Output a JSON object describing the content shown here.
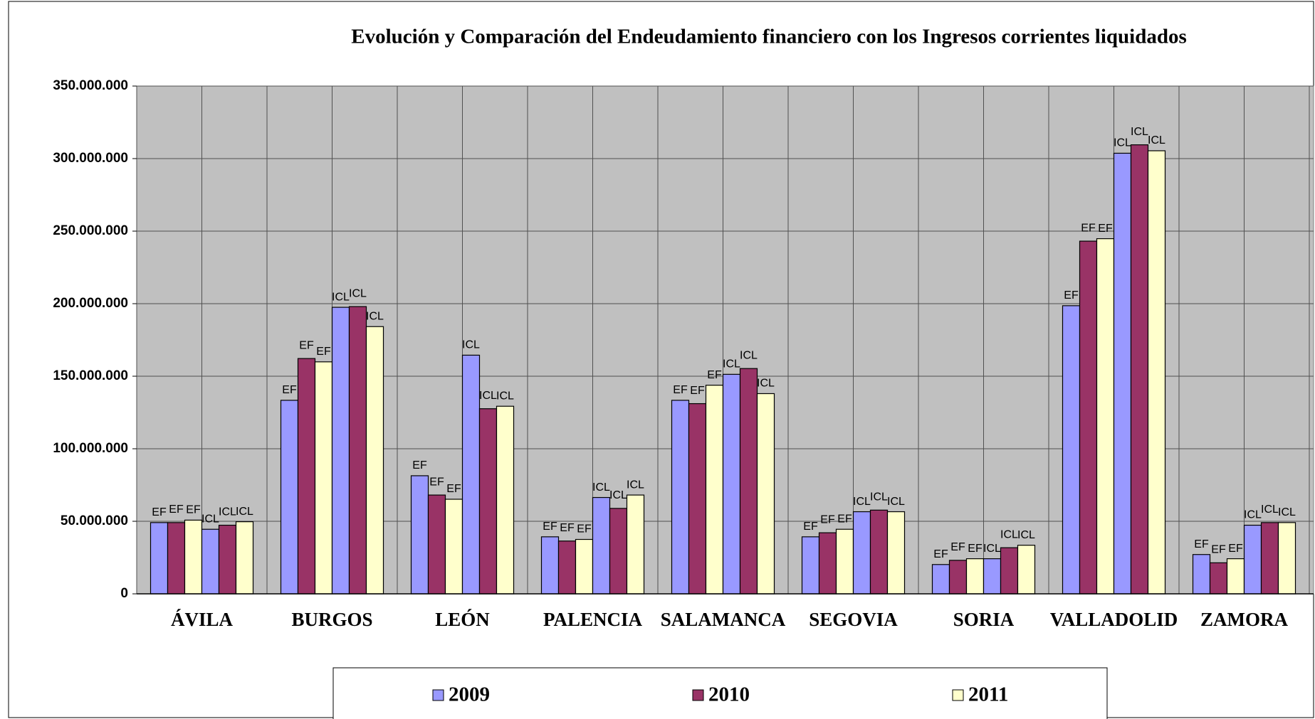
{
  "chart_data": {
    "type": "bar",
    "title": "Evolución y Comparación del Endeudamiento financiero con los Ingresos corrientes liquidados",
    "categories": [
      "ÁVILA",
      "BURGOS",
      "LEÓN",
      "PALENCIA",
      "SALAMANCA",
      "SEGOVIA",
      "SORIA",
      "VALLADOLID",
      "ZAMORA"
    ],
    "measures": [
      "EF",
      "ICL"
    ],
    "series": [
      {
        "name": "2009",
        "color": "#9999ff",
        "values": [
          [
            49100000,
            44500000
          ],
          [
            133400000,
            197500000
          ],
          [
            81400000,
            164500000
          ],
          [
            39300000,
            66400000
          ],
          [
            133400000,
            151300000
          ],
          [
            39300000,
            56600000
          ],
          [
            20200000,
            24200000
          ],
          [
            198600000,
            303700000
          ],
          [
            27100000,
            47300000
          ]
        ]
      },
      {
        "name": "2010",
        "color": "#993366",
        "values": [
          [
            49100000,
            47300000
          ],
          [
            162200000,
            198000000
          ],
          [
            68100000,
            127600000
          ],
          [
            36400000,
            58900000
          ],
          [
            131100000,
            155300000
          ],
          [
            42100000,
            57700000
          ],
          [
            23100000,
            31800000
          ],
          [
            243100000,
            309500000
          ],
          [
            21400000,
            49100000
          ]
        ]
      },
      {
        "name": "2011",
        "color": "#ffffcc",
        "values": [
          [
            50800000,
            49700000
          ],
          [
            159900000,
            184200000
          ],
          [
            65200000,
            129300000
          ],
          [
            37500000,
            68100000
          ],
          [
            143800000,
            138000000
          ],
          [
            44500000,
            56600000
          ],
          [
            24200000,
            33500000
          ],
          [
            244800000,
            305400000
          ],
          [
            24200000,
            49100000
          ]
        ]
      }
    ],
    "ylim": [
      0,
      350000000
    ],
    "yticks": [
      0,
      {
        "value": 50000000,
        "label": "50.000.000"
      },
      {
        "value": 100000000,
        "label": "100.000.000"
      },
      {
        "value": 150000000,
        "label": "150.000.000"
      },
      {
        "value": 200000000,
        "label": "200.000.000"
      },
      {
        "value": 250000000,
        "label": "250.000.000"
      },
      {
        "value": 300000000,
        "label": "300.000.000"
      },
      {
        "value": 350000000,
        "label": "350.000.000"
      }
    ],
    "grid": true,
    "legend": "bottom"
  }
}
